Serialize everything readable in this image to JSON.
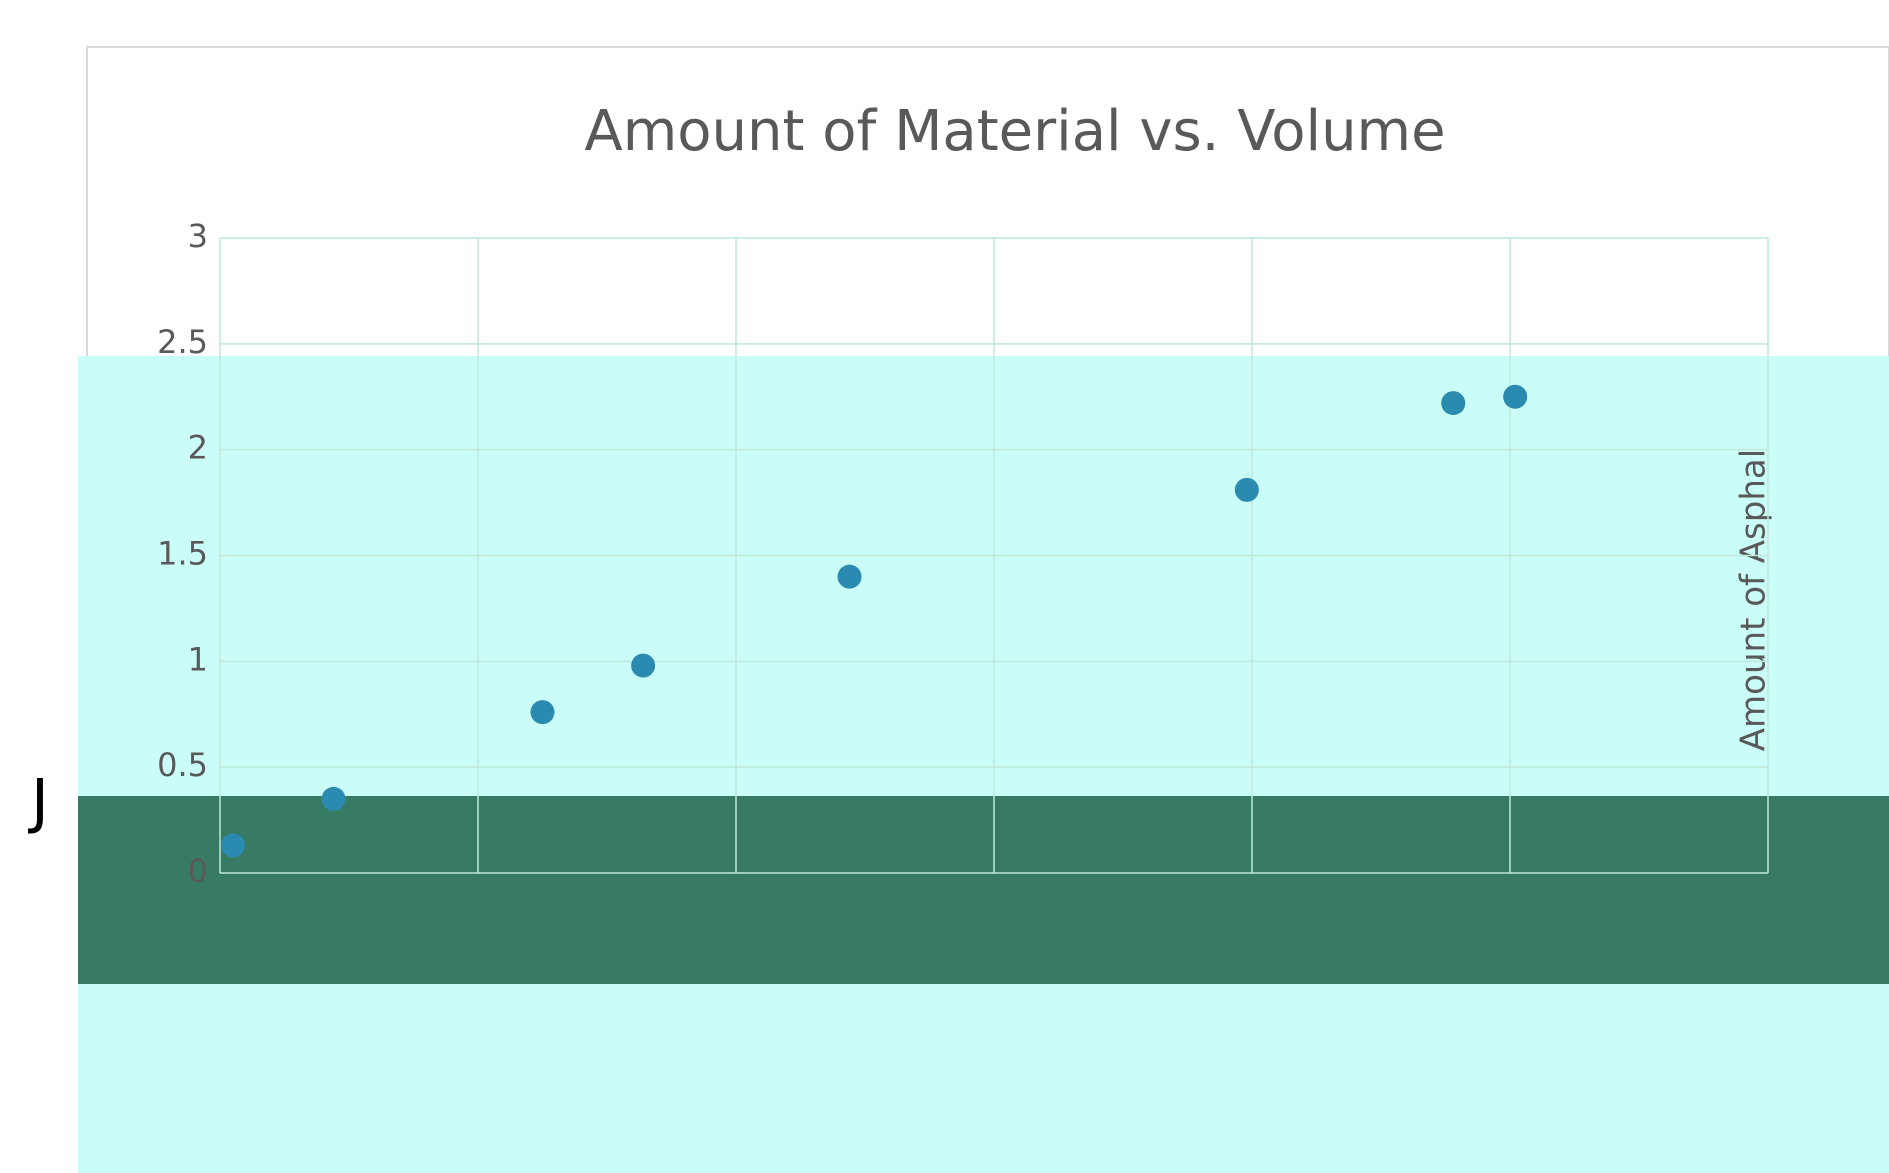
{
  "side_text": "J",
  "chart_data": {
    "type": "scatter",
    "title": "Amount of Material vs. Volume",
    "y_label": "Amount of Asphal",
    "x": [
      0.05,
      0.44,
      1.25,
      1.64,
      2.44,
      3.98,
      4.78,
      5.02
    ],
    "values": [
      0.13,
      0.35,
      0.76,
      0.98,
      1.4,
      1.81,
      2.22,
      2.25
    ],
    "color": "#2b8ab0",
    "xlim": [
      0,
      6
    ],
    "ylim": [
      0,
      3
    ],
    "yticks": [
      0,
      0.5,
      1,
      1.5,
      2,
      2.5,
      3
    ],
    "grid": true
  }
}
